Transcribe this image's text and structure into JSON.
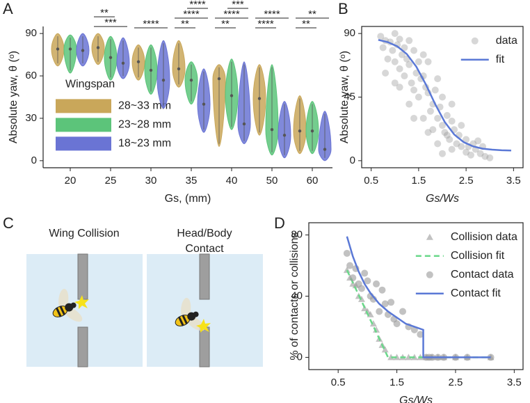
{
  "chart_data": [
    {
      "type": "violin",
      "panel_label": "A",
      "categories": [
        "20",
        "25",
        "30",
        "35",
        "40",
        "50",
        "60"
      ],
      "x_label": "Gs, (mm)",
      "y_label": "Absolute yaw, θ (ᵒ)",
      "ylim": [
        -5,
        95
      ],
      "yticks": [
        0,
        30,
        60,
        90
      ],
      "grid": false,
      "legend": "center left",
      "legend_title": "Wingspan",
      "series": [
        {
          "name": "28~33 mm",
          "color": "#c9a75a",
          "values": [
            79,
            80,
            70,
            65,
            58,
            44,
            21
          ],
          "mins": [
            67,
            68,
            57,
            52,
            10,
            18,
            5
          ],
          "maxs": [
            90,
            90,
            82,
            85,
            68,
            68,
            46
          ]
        },
        {
          "name": "23~28 mm",
          "color": "#5cc47a",
          "values": [
            79,
            73,
            64,
            57,
            46,
            22,
            21
          ],
          "mins": [
            62,
            57,
            47,
            40,
            22,
            4,
            5
          ],
          "maxs": [
            89,
            88,
            82,
            70,
            72,
            68,
            42
          ]
        },
        {
          "name": "18~23 mm",
          "color": "#6a74d4",
          "values": [
            78,
            69,
            57,
            40,
            26,
            18,
            8
          ],
          "mins": [
            67,
            58,
            37,
            20,
            12,
            2,
            0
          ],
          "maxs": [
            90,
            87,
            85,
            65,
            70,
            42,
            35
          ]
        }
      ],
      "annotations": [
        [],
        [
          {
            "series": [
              0,
              2
            ],
            "label": "***"
          },
          {
            "series": [
              0,
              1
            ],
            "label": "**"
          }
        ],
        [
          {
            "series": [
              0,
              2
            ],
            "label": "****"
          }
        ],
        [
          {
            "series": [
              0,
              1
            ],
            "label": "**"
          },
          {
            "series": [
              0,
              2
            ],
            "label": "****"
          },
          {
            "series": [
              1,
              2
            ],
            "label": "****"
          }
        ],
        [
          {
            "series": [
              0,
              1
            ],
            "label": "**"
          },
          {
            "series": [
              0,
              2
            ],
            "label": "****"
          },
          {
            "series": [
              1,
              2
            ],
            "label": "***"
          }
        ],
        [
          {
            "series": [
              0,
              1
            ],
            "label": "****"
          },
          {
            "series": [
              0,
              2
            ],
            "label": "****"
          }
        ],
        [
          {
            "series": [
              0,
              1
            ],
            "label": "**"
          },
          {
            "series": [
              0,
              2
            ],
            "label": "**"
          }
        ]
      ]
    },
    {
      "type": "scatter",
      "panel_label": "B",
      "x_label": "Gs/Ws",
      "y_label": "Absolute yaw, θ (ᵒ)",
      "xlim": [
        0.3,
        3.7
      ],
      "xticks": [
        0.5,
        1.5,
        2.5,
        3.5
      ],
      "ylim": [
        -5,
        95
      ],
      "yticks": [
        0,
        45,
        90
      ],
      "grid": false,
      "legend": "upper right",
      "series": [
        {
          "name": "data",
          "color": "#8c8c8c",
          "style": "circle",
          "alpha": 0.35,
          "x": [
            0.7,
            0.75,
            0.8,
            0.85,
            0.9,
            0.95,
            1.0,
            1.0,
            1.05,
            1.1,
            1.1,
            1.15,
            1.2,
            1.2,
            1.25,
            1.3,
            1.3,
            1.35,
            1.4,
            1.4,
            1.45,
            1.5,
            1.5,
            1.55,
            1.6,
            1.6,
            1.65,
            1.7,
            1.7,
            1.75,
            1.8,
            1.8,
            1.85,
            1.9,
            1.9,
            1.95,
            2.0,
            2.0,
            2.05,
            2.1,
            2.1,
            2.15,
            2.2,
            2.2,
            2.25,
            2.3,
            2.35,
            2.4,
            2.4,
            2.5,
            2.5,
            2.55,
            2.6,
            2.65,
            2.7,
            2.75,
            2.8,
            2.85,
            2.9,
            3.0,
            1.0,
            1.3,
            1.6,
            1.9,
            2.2,
            0.8,
            1.1,
            1.4,
            1.7,
            2.0
          ],
          "values": [
            88,
            80,
            85,
            72,
            84,
            78,
            90,
            70,
            82,
            65,
            86,
            75,
            80,
            60,
            72,
            68,
            85,
            55,
            78,
            50,
            62,
            70,
            45,
            58,
            60,
            30,
            52,
            48,
            70,
            35,
            40,
            22,
            50,
            30,
            12,
            38,
            25,
            45,
            20,
            18,
            32,
            15,
            28,
            8,
            22,
            12,
            18,
            10,
            25,
            6,
            15,
            10,
            4,
            12,
            8,
            14,
            5,
            10,
            3,
            2,
            55,
            40,
            75,
            58,
            40,
            62,
            52,
            30,
            20,
            5
          ]
        },
        {
          "name": "fit",
          "color": "#5a78d6",
          "style": "line",
          "x": [
            0.65,
            0.85,
            1.05,
            1.25,
            1.45,
            1.65,
            1.85,
            2.05,
            2.25,
            2.45,
            2.65,
            2.85,
            3.05,
            3.25,
            3.45
          ],
          "values": [
            85.5,
            83.9,
            80.9,
            75.5,
            66.6,
            54.1,
            39.9,
            27.4,
            18.5,
            13.1,
            10.1,
            8.5,
            7.8,
            7.4,
            7.2
          ]
        }
      ]
    },
    {
      "type": "scatter",
      "panel_label": "D",
      "x_label": "Gs/Ws",
      "y_label": "% of contacts or collisions",
      "xlim": [
        0,
        3.65
      ],
      "xticks": [
        0.5,
        1.5,
        2.5,
        3.5
      ],
      "ylim": [
        -8,
        88
      ],
      "yticks": [
        0,
        40,
        80
      ],
      "grid": false,
      "legend": "upper right",
      "series": [
        {
          "name": "Collision data",
          "color": "#9a9a9a",
          "style": "triangle",
          "alpha": 0.6,
          "x": [
            0.65,
            0.7,
            0.75,
            0.8,
            0.85,
            0.9,
            0.95,
            1.0,
            1.05,
            1.1,
            1.15,
            1.2,
            1.25,
            1.3,
            1.4,
            1.5,
            1.6,
            1.7,
            1.8,
            1.9,
            2.0,
            2.1,
            2.2,
            2.3,
            2.5,
            2.7,
            3.1
          ],
          "values": [
            57,
            52,
            48,
            47,
            40,
            38,
            32,
            30,
            28,
            22,
            18,
            12,
            8,
            5,
            0,
            0,
            0,
            0,
            0,
            0,
            0,
            0,
            0,
            0,
            0,
            0,
            0
          ]
        },
        {
          "name": "Collision fit",
          "color": "#6ad88a",
          "style": "dashed",
          "x": [
            0.65,
            1.35,
            3.1
          ],
          "values": [
            57,
            0,
            0
          ]
        },
        {
          "name": "Contact data",
          "color": "#9a9a9a",
          "style": "circle",
          "alpha": 0.6,
          "x": [
            0.65,
            0.7,
            0.75,
            0.8,
            0.85,
            0.9,
            0.95,
            1.0,
            1.05,
            1.1,
            1.15,
            1.2,
            1.25,
            1.3,
            1.35,
            1.4,
            1.45,
            1.5,
            1.6,
            1.7,
            1.8,
            1.9,
            2.0,
            2.05,
            2.1,
            2.2,
            2.3,
            2.5,
            2.7,
            3.1
          ],
          "values": [
            68,
            60,
            52,
            58,
            48,
            45,
            55,
            50,
            40,
            38,
            48,
            30,
            44,
            35,
            28,
            36,
            25,
            22,
            30,
            20,
            18,
            15,
            0,
            0,
            0,
            0,
            0,
            0,
            0,
            0
          ]
        },
        {
          "name": "Contact fit",
          "color": "#5a78d6",
          "style": "line",
          "x": [
            0.65,
            0.75,
            0.85,
            0.95,
            1.05,
            1.2,
            1.35,
            1.5,
            1.65,
            1.8,
            1.95,
            1.95,
            3.1
          ],
          "values": [
            79,
            66,
            56,
            48,
            42,
            35,
            30,
            26,
            22,
            20,
            18,
            0,
            0
          ]
        }
      ]
    }
  ],
  "diagram": {
    "panel_label": "C",
    "panels": [
      {
        "title_lines": [
          "Wing Collision"
        ]
      },
      {
        "title_lines": [
          "Head/Body",
          "Contact"
        ]
      }
    ]
  }
}
